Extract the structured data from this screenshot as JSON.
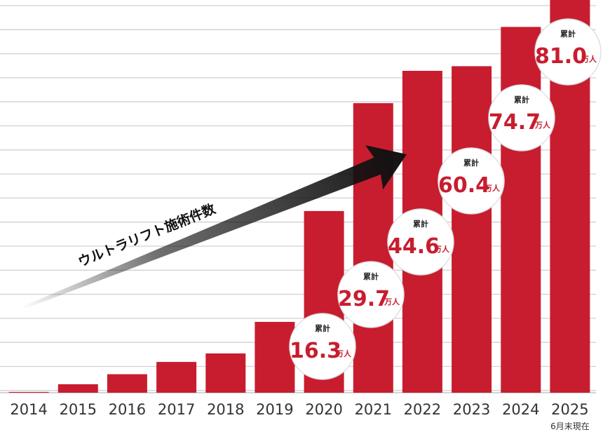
{
  "chart_data": {
    "type": "bar",
    "categories": [
      "2014",
      "2015",
      "2016",
      "2017",
      "2018",
      "2019",
      "2020",
      "2021",
      "2022",
      "2023",
      "2024",
      "2025"
    ],
    "values": [
      1,
      11,
      24,
      40,
      51,
      92,
      236,
      376,
      418,
      424,
      475,
      510
    ],
    "ylim": [
      0,
      510
    ],
    "grid": true,
    "arrow_label": "ウルトラリフト施術件数",
    "last_category_note": "6月末現在",
    "cumulative_labels": [
      {
        "category": "2020",
        "title": "累計",
        "value": "16.3",
        "unit": "万人"
      },
      {
        "category": "2021",
        "title": "累計",
        "value": "29.7",
        "unit": "万人"
      },
      {
        "category": "2022",
        "title": "累計",
        "value": "44.6",
        "unit": "万人"
      },
      {
        "category": "2023",
        "title": "累計",
        "value": "60.4",
        "unit": "万人"
      },
      {
        "category": "2024",
        "title": "累計",
        "value": "74.7",
        "unit": "万人"
      },
      {
        "category": "2025",
        "title": "累計",
        "value": "81.0",
        "unit": "万人"
      }
    ],
    "colors": {
      "bar": "#c81d2f",
      "grid": "#cfcfd8",
      "bubble_border": "#c81d2f",
      "arrow": "#111111"
    }
  }
}
